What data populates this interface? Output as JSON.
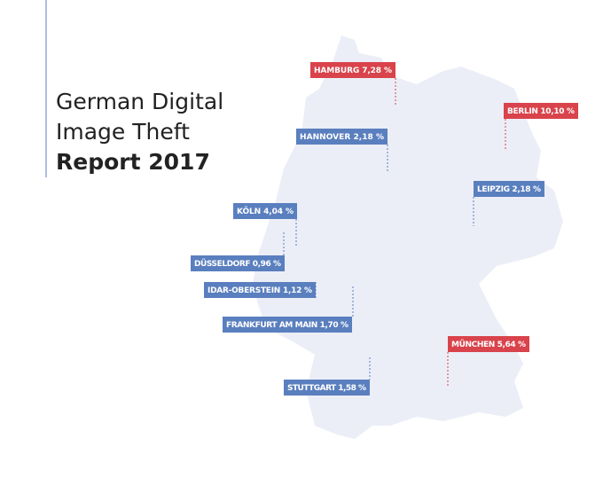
{
  "title": {
    "line1": "German Digital",
    "line2": "Image Theft",
    "line3": "Report 2017"
  },
  "cities": [
    {
      "label": "HAMBURG 7,28 %",
      "color": "#d9434b"
    },
    {
      "label": "BERLIN 10,10 %",
      "color": "#d9434b"
    },
    {
      "label": "HANNOVER 2,18 %",
      "color": "#5a7fbf"
    },
    {
      "label": "LEIPZIG 2,18 %",
      "color": "#5a7fbf"
    },
    {
      "label": "KÖLN 4,04 %",
      "color": "#5a7fbf"
    },
    {
      "label": "DÜSSELDORF 0,96 %",
      "color": "#5a7fbf"
    },
    {
      "label": "IDAR-OBERSTEIN 1,12 %",
      "color": "#5a7fbf"
    },
    {
      "label": "FRANKFURT AM MAIN 1,70 %",
      "color": "#5a7fbf"
    },
    {
      "label": "MÜNCHEN 5,64 %",
      "color": "#d9434b"
    },
    {
      "label": "STUTTGART 1,58 %",
      "color": "#5a7fbf"
    }
  ]
}
